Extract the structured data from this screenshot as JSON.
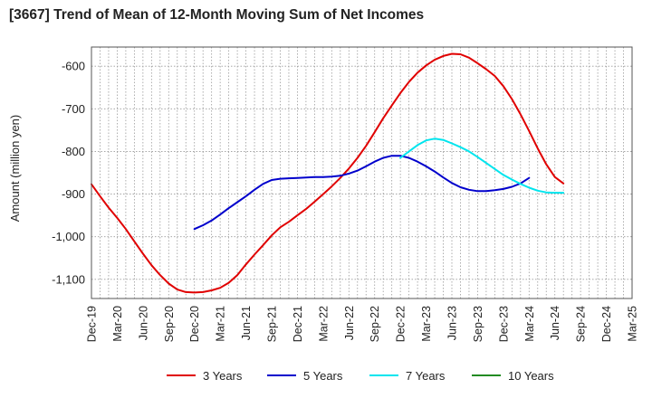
{
  "title": "[3667]  Trend of Mean of 12-Month Moving Sum of Net Incomes",
  "chart_data": {
    "type": "line",
    "title": "[3667]  Trend of Mean of 12-Month Moving Sum of Net Incomes",
    "ylabel": "Amount (million yen)",
    "xlabel": "",
    "ylim": [
      -1145,
      -555
    ],
    "y_ticks": [
      -600,
      -700,
      -800,
      -900,
      -1000,
      -1100
    ],
    "y_tick_labels": [
      "-600",
      "-700",
      "-800",
      "-900",
      "-1,000",
      "-1,100"
    ],
    "x_tick_labels": [
      "Dec-19",
      "Mar-20",
      "Jun-20",
      "Sep-20",
      "Dec-20",
      "Mar-21",
      "Jun-21",
      "Sep-21",
      "Dec-21",
      "Mar-22",
      "Jun-22",
      "Sep-22",
      "Dec-22",
      "Mar-23",
      "Jun-23",
      "Sep-23",
      "Dec-23",
      "Mar-24",
      "Jun-24",
      "Sep-24",
      "Dec-24",
      "Mar-25"
    ],
    "grid": true,
    "legend_position": "bottom",
    "series": [
      {
        "name": "3 Years",
        "color": "#e00000",
        "x_start": "Dec-19",
        "values": [
          -877,
          -905,
          -932,
          -956,
          -982,
          -1011,
          -1040,
          -1067,
          -1090,
          -1110,
          -1124,
          -1130,
          -1131,
          -1130,
          -1126,
          -1120,
          -1108,
          -1090,
          -1065,
          -1042,
          -1020,
          -997,
          -978,
          -965,
          -950,
          -935,
          -918,
          -900,
          -882,
          -862,
          -840,
          -815,
          -787,
          -755,
          -722,
          -692,
          -663,
          -637,
          -615,
          -598,
          -585,
          -576,
          -571,
          -572,
          -580,
          -593,
          -607,
          -623,
          -647,
          -677,
          -713,
          -752,
          -793,
          -830,
          -860,
          -875
        ]
      },
      {
        "name": "5 Years",
        "color": "#0000cc",
        "x_start": "Dec-20",
        "values": [
          -982,
          -973,
          -962,
          -948,
          -933,
          -919,
          -905,
          -890,
          -876,
          -867,
          -864,
          -863,
          -862,
          -861,
          -860,
          -860,
          -859,
          -857,
          -852,
          -845,
          -835,
          -824,
          -815,
          -810,
          -810,
          -815,
          -824,
          -835,
          -847,
          -861,
          -874,
          -884,
          -890,
          -893,
          -893,
          -891,
          -888,
          -883,
          -875,
          -862
        ]
      },
      {
        "name": "7 Years",
        "color": "#00e5ee",
        "x_start": "Dec-22",
        "values": [
          -815,
          -800,
          -785,
          -774,
          -770,
          -773,
          -781,
          -790,
          -800,
          -813,
          -827,
          -841,
          -855,
          -866,
          -876,
          -885,
          -892,
          -896,
          -897,
          -897
        ]
      },
      {
        "name": "10 Years",
        "color": "#228b22",
        "x_start": "Dec-24",
        "values": []
      }
    ]
  }
}
